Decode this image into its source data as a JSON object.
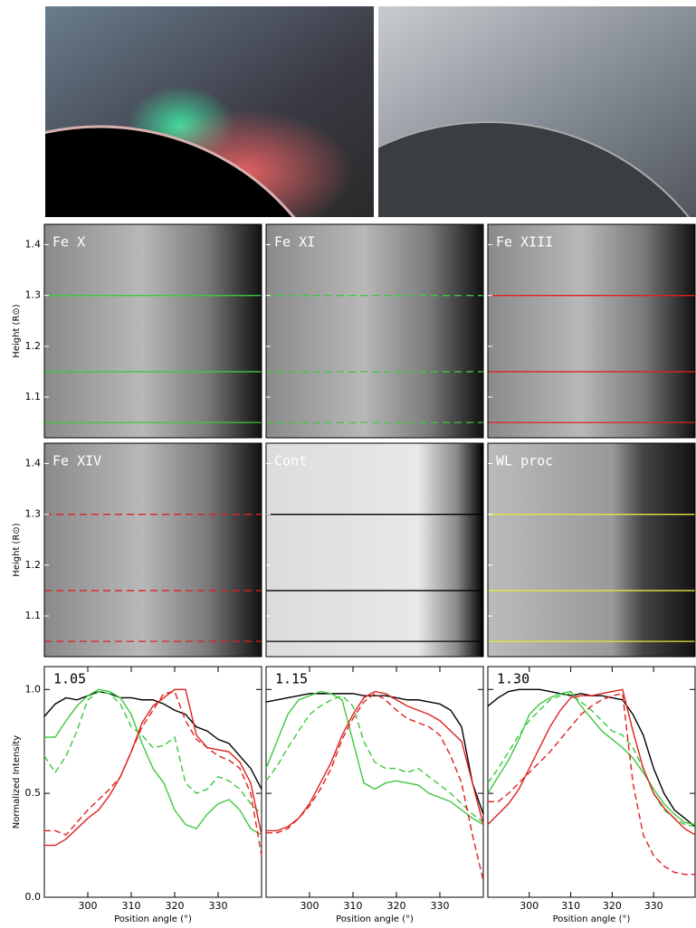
{
  "panel_axis": {
    "ylabel": "Height (R⊙)",
    "ylim": [
      1.02,
      1.44
    ],
    "yticks": [
      1.1,
      1.2,
      1.3,
      1.4
    ],
    "heights": [
      1.05,
      1.15,
      1.3
    ]
  },
  "panels": [
    {
      "label": "Fe X",
      "line_color": "#3ec83e",
      "dashed": false
    },
    {
      "label": "Fe XI",
      "line_color": "#3ec83e",
      "dashed": true
    },
    {
      "label": "Fe XIII",
      "line_color": "#e02020",
      "dashed": false
    },
    {
      "label": "Fe XIV",
      "line_color": "#e02020",
      "dashed": true
    },
    {
      "label": "Cont",
      "line_color": "#000000",
      "dashed": false
    },
    {
      "label": "WL proc",
      "line_color": "#e6e63a",
      "dashed": false
    }
  ],
  "chart_data": [
    {
      "type": "line",
      "label": "1.05",
      "xlabel": "Position angle (°)",
      "ylabel": "Normalized Intensity",
      "x": [
        290,
        292.5,
        295,
        297.5,
        300,
        302.5,
        305,
        307.5,
        310,
        312.5,
        315,
        317.5,
        320,
        322.5,
        325,
        327.5,
        330,
        332.5,
        335,
        337.5,
        340
      ],
      "xlim": [
        290,
        340
      ],
      "xticks": [
        300,
        310,
        320,
        330
      ],
      "ylim": [
        0,
        1.11
      ],
      "yticks": [
        {
          "value": 0,
          "label": "0.0"
        },
        {
          "value": 0.5,
          "label": "0.5"
        },
        {
          "value": 1,
          "label": "1.0"
        }
      ],
      "series": [
        {
          "color": "#000000",
          "dashed": false,
          "values": [
            0.87,
            0.93,
            0.96,
            0.95,
            0.97,
            0.99,
            0.98,
            0.96,
            0.96,
            0.95,
            0.95,
            0.93,
            0.9,
            0.88,
            0.82,
            0.8,
            0.76,
            0.74,
            0.68,
            0.62,
            0.52
          ]
        },
        {
          "color": "#3ec83e",
          "dashed": false,
          "values": [
            0.77,
            0.77,
            0.85,
            0.92,
            0.97,
            1.0,
            0.99,
            0.96,
            0.88,
            0.74,
            0.62,
            0.55,
            0.42,
            0.35,
            0.33,
            0.4,
            0.45,
            0.47,
            0.42,
            0.33,
            0.3
          ]
        },
        {
          "color": "#3ec83e",
          "dashed": true,
          "values": [
            0.68,
            0.6,
            0.68,
            0.8,
            0.95,
            0.99,
            0.98,
            0.93,
            0.82,
            0.78,
            0.72,
            0.73,
            0.77,
            0.55,
            0.5,
            0.52,
            0.58,
            0.56,
            0.52,
            0.45,
            0.4
          ]
        },
        {
          "color": "#e02020",
          "dashed": false,
          "values": [
            0.25,
            0.25,
            0.28,
            0.33,
            0.38,
            0.42,
            0.49,
            0.58,
            0.7,
            0.84,
            0.92,
            0.96,
            1.0,
            1.0,
            0.78,
            0.72,
            0.71,
            0.7,
            0.65,
            0.55,
            0.3
          ]
        },
        {
          "color": "#e02020",
          "dashed": true,
          "values": [
            0.32,
            0.32,
            0.3,
            0.36,
            0.42,
            0.47,
            0.52,
            0.58,
            0.7,
            0.82,
            0.9,
            0.98,
            0.99,
            0.85,
            0.76,
            0.72,
            0.68,
            0.66,
            0.62,
            0.5,
            0.2
          ]
        }
      ]
    },
    {
      "type": "line",
      "label": "1.15",
      "xlabel": "Position angle (°)",
      "x": [
        290,
        292.5,
        295,
        297.5,
        300,
        302.5,
        305,
        307.5,
        310,
        312.5,
        315,
        317.5,
        320,
        322.5,
        325,
        327.5,
        330,
        332.5,
        335,
        337.5,
        340
      ],
      "xlim": [
        290,
        340
      ],
      "xticks": [
        300,
        310,
        320,
        330
      ],
      "ylim": [
        0,
        1.11
      ],
      "yticks": [
        0,
        0.5,
        1
      ],
      "series": [
        {
          "color": "#000000",
          "dashed": false,
          "values": [
            0.94,
            0.95,
            0.96,
            0.97,
            0.98,
            0.98,
            0.98,
            0.98,
            0.98,
            0.97,
            0.97,
            0.97,
            0.96,
            0.95,
            0.95,
            0.94,
            0.93,
            0.9,
            0.82,
            0.55,
            0.4
          ]
        },
        {
          "color": "#3ec83e",
          "dashed": false,
          "values": [
            0.62,
            0.75,
            0.88,
            0.95,
            0.97,
            0.99,
            0.98,
            0.95,
            0.75,
            0.55,
            0.52,
            0.55,
            0.56,
            0.55,
            0.54,
            0.5,
            0.48,
            0.46,
            0.42,
            0.38,
            0.35
          ]
        },
        {
          "color": "#3ec83e",
          "dashed": true,
          "values": [
            0.56,
            0.63,
            0.72,
            0.8,
            0.88,
            0.92,
            0.95,
            0.97,
            0.92,
            0.75,
            0.65,
            0.62,
            0.62,
            0.6,
            0.62,
            0.58,
            0.54,
            0.5,
            0.45,
            0.4,
            0.36
          ]
        },
        {
          "color": "#e02020",
          "dashed": false,
          "values": [
            0.32,
            0.32,
            0.34,
            0.38,
            0.45,
            0.55,
            0.65,
            0.78,
            0.88,
            0.96,
            0.99,
            0.98,
            0.95,
            0.92,
            0.9,
            0.88,
            0.85,
            0.8,
            0.75,
            0.55,
            0.35
          ]
        },
        {
          "color": "#e02020",
          "dashed": true,
          "values": [
            0.31,
            0.31,
            0.33,
            0.38,
            0.44,
            0.52,
            0.62,
            0.76,
            0.86,
            0.94,
            0.98,
            0.95,
            0.9,
            0.86,
            0.84,
            0.82,
            0.78,
            0.68,
            0.55,
            0.3,
            0.08
          ]
        }
      ]
    },
    {
      "type": "line",
      "label": "1.30",
      "xlabel": "Position angle (°)",
      "x": [
        290,
        292.5,
        295,
        297.5,
        300,
        302.5,
        305,
        307.5,
        310,
        312.5,
        315,
        317.5,
        320,
        322.5,
        325,
        327.5,
        330,
        332.5,
        335,
        337.5,
        340
      ],
      "xlim": [
        290,
        340
      ],
      "xticks": [
        300,
        310,
        320,
        330
      ],
      "ylim": [
        0,
        1.11
      ],
      "yticks": [
        0,
        0.5,
        1
      ],
      "series": [
        {
          "color": "#000000",
          "dashed": false,
          "values": [
            0.92,
            0.96,
            0.99,
            1.0,
            1.0,
            1.0,
            0.99,
            0.98,
            0.97,
            0.98,
            0.97,
            0.97,
            0.96,
            0.95,
            0.88,
            0.78,
            0.62,
            0.5,
            0.42,
            0.38,
            0.34
          ]
        },
        {
          "color": "#3ec83e",
          "dashed": false,
          "values": [
            0.5,
            0.58,
            0.66,
            0.76,
            0.88,
            0.93,
            0.96,
            0.98,
            0.99,
            0.92,
            0.86,
            0.8,
            0.76,
            0.72,
            0.67,
            0.6,
            0.52,
            0.45,
            0.4,
            0.36,
            0.35
          ]
        },
        {
          "color": "#3ec83e",
          "dashed": true,
          "values": [
            0.55,
            0.62,
            0.7,
            0.78,
            0.85,
            0.9,
            0.95,
            0.97,
            0.98,
            0.94,
            0.9,
            0.85,
            0.8,
            0.78,
            0.72,
            0.62,
            0.5,
            0.42,
            0.38,
            0.35,
            0.34
          ]
        },
        {
          "color": "#e02020",
          "dashed": false,
          "values": [
            0.35,
            0.4,
            0.45,
            0.52,
            0.62,
            0.72,
            0.82,
            0.9,
            0.96,
            0.97,
            0.97,
            0.98,
            0.99,
            1.0,
            0.8,
            0.62,
            0.5,
            0.43,
            0.38,
            0.33,
            0.3
          ]
        },
        {
          "color": "#e02020",
          "dashed": true,
          "values": [
            0.46,
            0.46,
            0.5,
            0.55,
            0.6,
            0.65,
            0.7,
            0.76,
            0.82,
            0.88,
            0.92,
            0.95,
            0.97,
            0.98,
            0.55,
            0.3,
            0.2,
            0.15,
            0.12,
            0.11,
            0.11
          ]
        }
      ]
    }
  ]
}
